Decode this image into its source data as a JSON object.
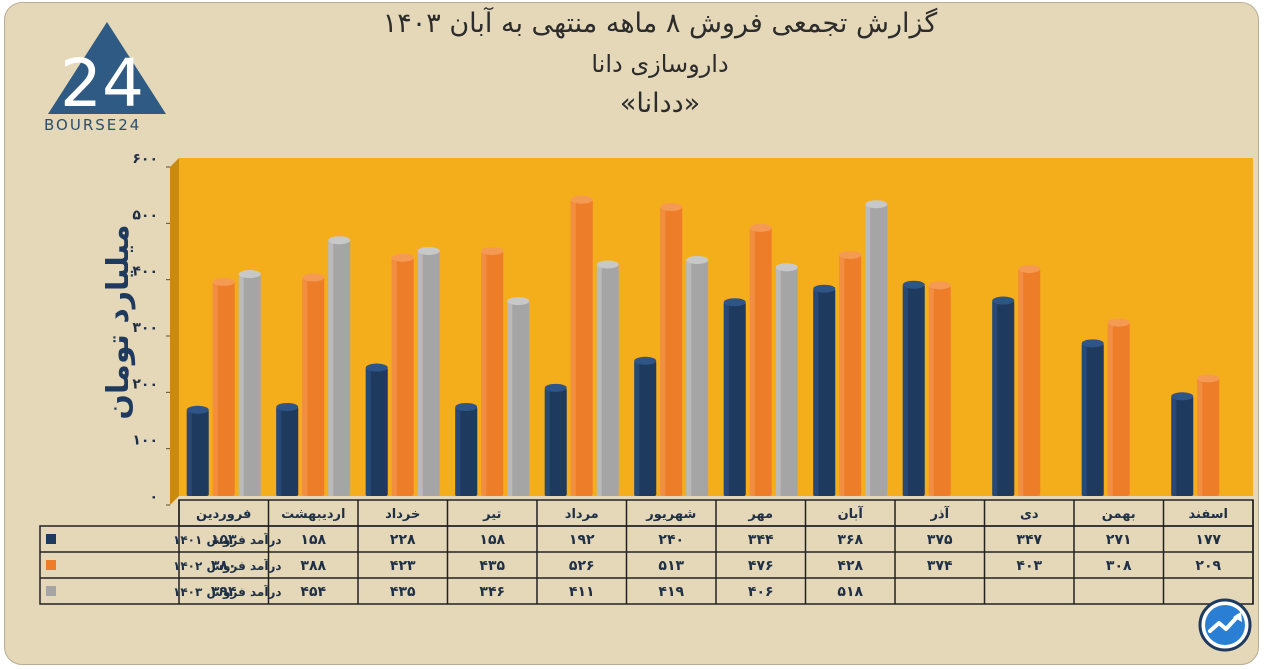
{
  "header": {
    "title_line1": "گزارش تجمعی فروش ۸ ماهه منتهی به آبان ۱۴۰۳",
    "title_line2": "داروسازی دانا",
    "title_line3": "«ددانا»",
    "logo_text": "BOURSE24",
    "logo_number": "24"
  },
  "chart_data": {
    "type": "bar",
    "ylabel": "میلیارد تومان",
    "ylim": [
      0,
      600
    ],
    "yticks": [
      "۰",
      "۱۰۰",
      "۲۰۰",
      "۳۰۰",
      "۴۰۰",
      "۵۰۰",
      "۶۰۰"
    ],
    "ytick_values": [
      0,
      100,
      200,
      300,
      400,
      500,
      600
    ],
    "categories": [
      "فروردین",
      "اردیبهشت",
      "خرداد",
      "تیر",
      "مرداد",
      "شهریور",
      "مهر",
      "آبان",
      "آذر",
      "دی",
      "بهمن",
      "اسفند"
    ],
    "series": [
      {
        "name": "درآمد فروش ۱۴۰۱",
        "color": "#1f3a5f",
        "values": [
          153,
          158,
          228,
          158,
          192,
          240,
          344,
          368,
          375,
          347,
          271,
          177
        ],
        "labels": [
          "۱۵۳",
          "۱۵۸",
          "۲۲۸",
          "۱۵۸",
          "۱۹۲",
          "۲۴۰",
          "۳۴۴",
          "۳۶۸",
          "۳۷۵",
          "۳۴۷",
          "۲۷۱",
          "۱۷۷"
        ]
      },
      {
        "name": "درآمد فروش ۱۴۰۲",
        "color": "#ee7d2a",
        "values": [
          380,
          388,
          423,
          435,
          526,
          513,
          476,
          428,
          374,
          403,
          308,
          209
        ],
        "labels": [
          "۳۸۰",
          "۳۸۸",
          "۴۲۳",
          "۴۳۵",
          "۵۲۶",
          "۵۱۳",
          "۴۷۶",
          "۴۲۸",
          "۳۷۴",
          "۴۰۳",
          "۳۰۸",
          "۲۰۹"
        ]
      },
      {
        "name": "درآمد فروش ۱۴۰۳",
        "color": "#a5a5a5",
        "values": [
          394,
          454,
          435,
          346,
          411,
          419,
          406,
          518,
          null,
          null,
          null,
          null
        ],
        "labels": [
          "۳۹۴",
          "۴۵۴",
          "۴۳۵",
          "۳۴۶",
          "۴۱۱",
          "۴۱۹",
          "۴۰۶",
          "۵۱۸",
          "",
          "",
          "",
          ""
        ]
      }
    ],
    "plot_background": "#f5ae1b",
    "legend_placement": "data-table-below"
  }
}
